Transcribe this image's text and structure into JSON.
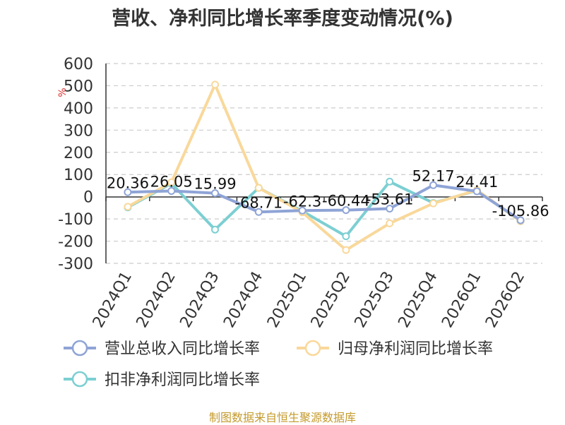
{
  "title": "营收、净利同比增长率季度变动情况(%)",
  "source": "制图数据来自恒生聚源数据库",
  "chart_data": {
    "type": "line",
    "title": "营收、净利同比增长率季度变动情况(%)",
    "ylabel": "%",
    "xlabel": "",
    "ylim": [
      -300,
      600
    ],
    "yticks": [
      600,
      500,
      400,
      300,
      200,
      100,
      0,
      -100,
      -200,
      -300
    ],
    "grid": true,
    "legend_position": "bottom",
    "categories": [
      "2024Q1",
      "2024Q2",
      "2024Q3",
      "2024Q4",
      "2025Q1",
      "2025Q2",
      "2025Q3",
      "2025Q4",
      "2026Q1",
      "2026Q2"
    ],
    "series": [
      {
        "name": "营业总收入同比增长率",
        "color": "#8fa4d6",
        "values": [
          20.36,
          26.05,
          15.99,
          -68.71,
          -62.3,
          -60.44,
          -53.61,
          52.17,
          24.41,
          -105.86
        ],
        "labels": [
          "20.36",
          "26.05",
          "15.99",
          "-68.71",
          "-62.3",
          "-60.44",
          "-53.61",
          "52.17",
          "24.41",
          "-105.86"
        ]
      },
      {
        "name": "归母净利润同比增长率",
        "color": "#f9d89a",
        "values": [
          -45,
          65,
          505,
          40,
          -70,
          -240,
          -120,
          -30,
          30,
          -110
        ]
      },
      {
        "name": "扣非净利润同比增长率",
        "color": "#7ccfd2",
        "values": [
          -48,
          60,
          -148,
          40,
          -65,
          -178,
          68,
          -28,
          28,
          -110
        ]
      }
    ]
  }
}
